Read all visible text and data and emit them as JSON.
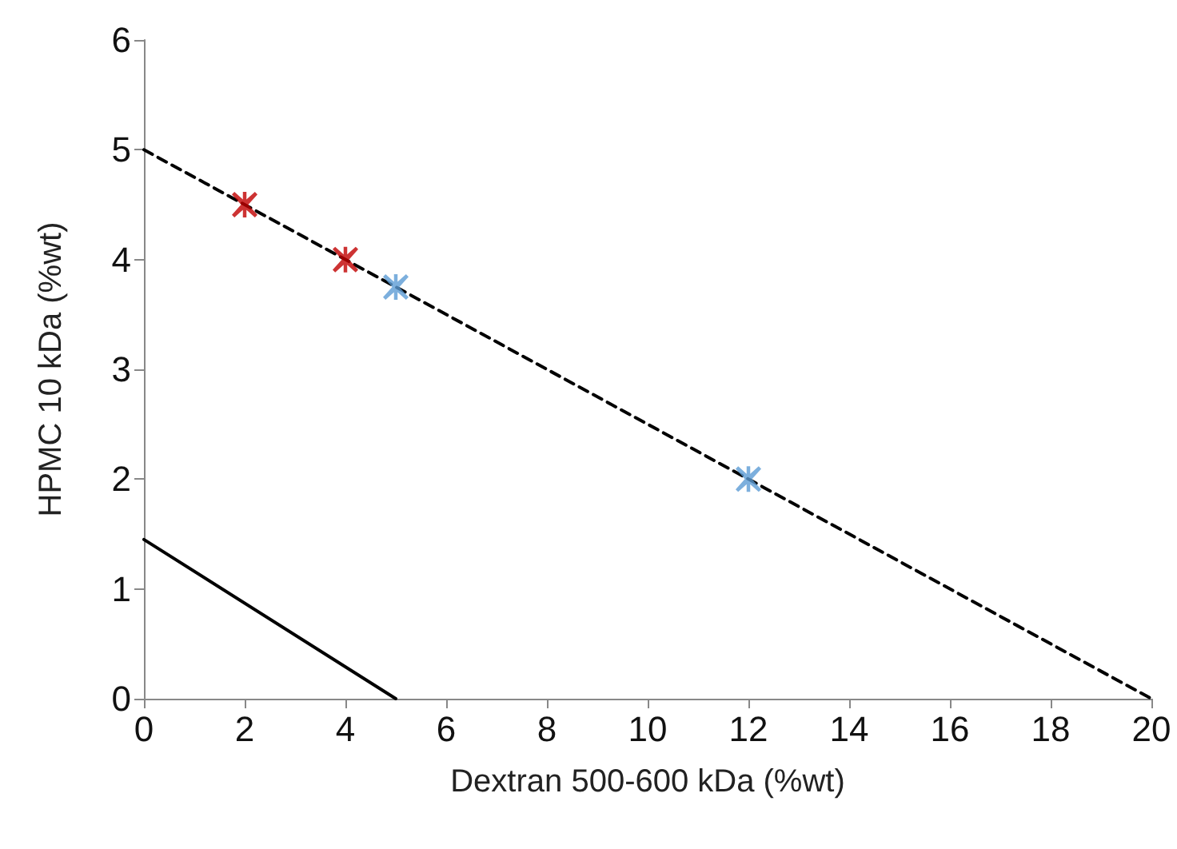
{
  "chart_data": {
    "type": "scatter",
    "xlabel": "Dextran 500-600 kDa (%wt)",
    "ylabel": "HPMC 10 kDa (%wt)",
    "xlim": [
      0,
      20
    ],
    "xticks": [
      0,
      2,
      4,
      6,
      8,
      10,
      12,
      14,
      16,
      18,
      20
    ],
    "ylim": [
      0,
      6
    ],
    "yticks": [
      0,
      1,
      2,
      3,
      4,
      5,
      6
    ],
    "grid": false,
    "series": [
      {
        "type": "line",
        "x": [
          0,
          20
        ],
        "values": [
          5,
          0
        ],
        "color": "#000000",
        "line_style": "dashed",
        "marker": "none"
      },
      {
        "type": "line",
        "x": [
          0,
          5
        ],
        "values": [
          1.45,
          0
        ],
        "color": "#000000",
        "line_style": "solid",
        "marker": "none"
      },
      {
        "x": [
          2,
          4
        ],
        "values": [
          4.5,
          4
        ],
        "color": "#c00000",
        "marker": "cross"
      },
      {
        "x": [
          5,
          12
        ],
        "values": [
          3.75,
          2
        ],
        "color": "#5b9bd5",
        "marker": "cross"
      }
    ]
  }
}
